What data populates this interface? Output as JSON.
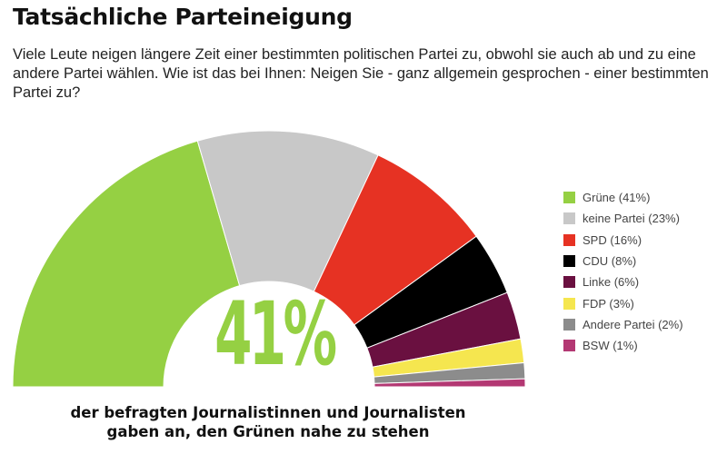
{
  "header": {
    "title": "Tatsächliche Parteineigung",
    "question": "Viele Leute neigen längere Zeit einer bestimmten politischen Partei zu, obwohl sie auch ab und zu eine andere Partei wählen. Wie ist das bei Ihnen: Neigen Sie - ganz allgemein gesprochen - einer bestimmten Partei zu?"
  },
  "highlight": {
    "value": "41%",
    "caption": "der befragten Journalistinnen und Journalisten gaben an, den Grünen nahe zu stehen"
  },
  "chart_data": {
    "type": "pie",
    "variant": "semi-donut",
    "title": "Tatsächliche Parteineigung",
    "unit": "%",
    "legend_position": "right",
    "slices": [
      {
        "label": "Grüne (41%)",
        "name": "Grüne",
        "value": 41,
        "color": "#95d043"
      },
      {
        "label": "keine Partei (23%)",
        "name": "keine Partei",
        "value": 23,
        "color": "#c8c8c8"
      },
      {
        "label": "SPD (16%)",
        "name": "SPD",
        "value": 16,
        "color": "#e63223"
      },
      {
        "label": "CDU (8%)",
        "name": "CDU",
        "value": 8,
        "color": "#000000"
      },
      {
        "label": "Linke (6%)",
        "name": "Linke",
        "value": 6,
        "color": "#6a1040"
      },
      {
        "label": "FDP (3%)",
        "name": "FDP",
        "value": 3,
        "color": "#f5e64f"
      },
      {
        "label": "Andere Partei (2%)",
        "name": "Andere Partei",
        "value": 2,
        "color": "#8c8c8c"
      },
      {
        "label": "BSW (1%)",
        "name": "BSW",
        "value": 1,
        "color": "#b33873"
      }
    ]
  }
}
